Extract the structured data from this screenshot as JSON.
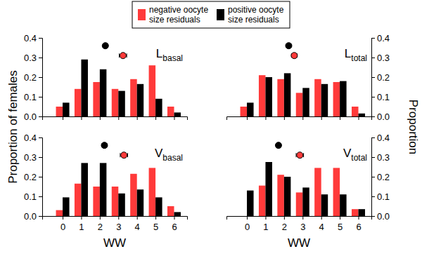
{
  "chart_data": [
    {
      "type": "bar",
      "title": "L",
      "subtitle": "basal",
      "ylabel": "Proportion of females",
      "legend": "top",
      "tick_labels": "y",
      "x": [
        0,
        1,
        2,
        3,
        4,
        5,
        6
      ],
      "xlim": [
        -1.1,
        6.7
      ],
      "xticks": [
        0,
        1,
        2,
        3,
        4,
        5,
        6
      ],
      "ylim": [
        0,
        0.4
      ],
      "yticks": [
        {
          "value": 0,
          "label": "0.0"
        },
        {
          "value": 0.1,
          "label": "0.1"
        },
        {
          "value": 0.2,
          "label": "0.2"
        },
        {
          "value": 0.3,
          "label": "0.3"
        },
        {
          "value": 0.4,
          "label": "0.4"
        }
      ],
      "series": [
        {
          "name": "negative oocyte size residuals",
          "color": "#ff3a3a",
          "values": [
            0.05,
            0.14,
            0.175,
            0.14,
            0.19,
            0.26,
            0.05
          ]
        },
        {
          "name": "positive oocyte size residuals",
          "color": "#000000",
          "values": [
            0.07,
            0.29,
            0.24,
            0.13,
            0.165,
            0.09,
            0.02
          ]
        }
      ],
      "means": [
        {
          "color": "#000000",
          "x": 2.3,
          "x_error": 0.13,
          "y": 0.36
        },
        {
          "color": "#ff3a3a",
          "x": 3.25,
          "x_error": 0.2,
          "y": 0.31
        }
      ]
    },
    {
      "type": "bar",
      "title": "L",
      "subtitle": "total",
      "ylabel": "Proportion",
      "tick_labels": "y",
      "x": [
        0,
        1,
        2,
        3,
        4,
        5,
        6
      ],
      "xlim": [
        -1.1,
        6.7
      ],
      "xticks": [
        0,
        1,
        2,
        3,
        4,
        5,
        6
      ],
      "ylim": [
        0,
        0.4
      ],
      "yticks": [
        {
          "value": 0,
          "label": "0.0"
        },
        {
          "value": 0.1,
          "label": "0.1"
        },
        {
          "value": 0.2,
          "label": "0.2"
        },
        {
          "value": 0.3,
          "label": "0.3"
        },
        {
          "value": 0.4,
          "label": "0.4"
        }
      ],
      "series": [
        {
          "color": "#ff3a3a",
          "values": [
            0.05,
            0.21,
            0.19,
            0.12,
            0.19,
            0.175,
            0.05
          ]
        },
        {
          "color": "#000000",
          "values": [
            0.07,
            0.2,
            0.22,
            0.145,
            0.165,
            0.18,
            0.015
          ]
        }
      ],
      "means": [
        {
          "color": "#000000",
          "x": 2.25,
          "x_error": 0.13,
          "y": 0.36
        },
        {
          "color": "#ff3a3a",
          "x": 2.55,
          "x_error": 0.15,
          "y": 0.31
        }
      ]
    },
    {
      "type": "bar",
      "title": "V",
      "subtitle": "basal",
      "xlabel": "WW",
      "tick_labels": true,
      "x": [
        0,
        1,
        2,
        3,
        4,
        5,
        6
      ],
      "xlim": [
        -1.1,
        6.7
      ],
      "xticks": [
        0,
        1,
        2,
        3,
        4,
        5,
        6
      ],
      "ylim": [
        0,
        0.4
      ],
      "yticks": [
        {
          "value": 0,
          "label": "0.0"
        },
        {
          "value": 0.1,
          "label": "0.1"
        },
        {
          "value": 0.2,
          "label": "0.2"
        },
        {
          "value": 0.3,
          "label": "0.3"
        },
        {
          "value": 0.4,
          "label": "0.4"
        }
      ],
      "series": [
        {
          "color": "#ff3a3a",
          "values": [
            0.03,
            0.165,
            0.15,
            0.15,
            0.215,
            0.245,
            0.05
          ]
        },
        {
          "color": "#000000",
          "values": [
            0.095,
            0.27,
            0.27,
            0.115,
            0.135,
            0.095,
            0.02
          ]
        }
      ],
      "means": [
        {
          "color": "#000000",
          "x": 2.25,
          "x_error": 0.13,
          "y": 0.36
        },
        {
          "color": "#ff3a3a",
          "x": 3.3,
          "x_error": 0.2,
          "y": 0.31
        }
      ]
    },
    {
      "type": "bar",
      "title": "V",
      "subtitle": "total",
      "xlabel": "WW",
      "tick_labels": true,
      "x": [
        0,
        1,
        2,
        3,
        4,
        5,
        6
      ],
      "xlim": [
        -1.1,
        6.7
      ],
      "xticks": [
        0,
        1,
        2,
        3,
        4,
        5,
        6
      ],
      "ylim": [
        0,
        0.4
      ],
      "yticks": [
        {
          "value": 0,
          "label": "0.0"
        },
        {
          "value": 0.1,
          "label": "0.1"
        },
        {
          "value": 0.2,
          "label": "0.2"
        },
        {
          "value": 0.3,
          "label": "0.3"
        },
        {
          "value": 0.4,
          "label": "0.4"
        }
      ],
      "series": [
        {
          "color": "#ff3a3a",
          "values": [
            0,
            0.155,
            0.21,
            0.12,
            0.245,
            0.245,
            0.035
          ]
        },
        {
          "color": "#000000",
          "values": [
            0.13,
            0.275,
            0.2,
            0.145,
            0.11,
            0.11,
            0.035
          ]
        }
      ],
      "means": [
        {
          "color": "#000000",
          "x": 1.7,
          "x_error": 0.13,
          "y": 0.36
        },
        {
          "color": "#ff3a3a",
          "x": 2.85,
          "x_error": 0.2,
          "y": 0.31
        }
      ]
    }
  ]
}
